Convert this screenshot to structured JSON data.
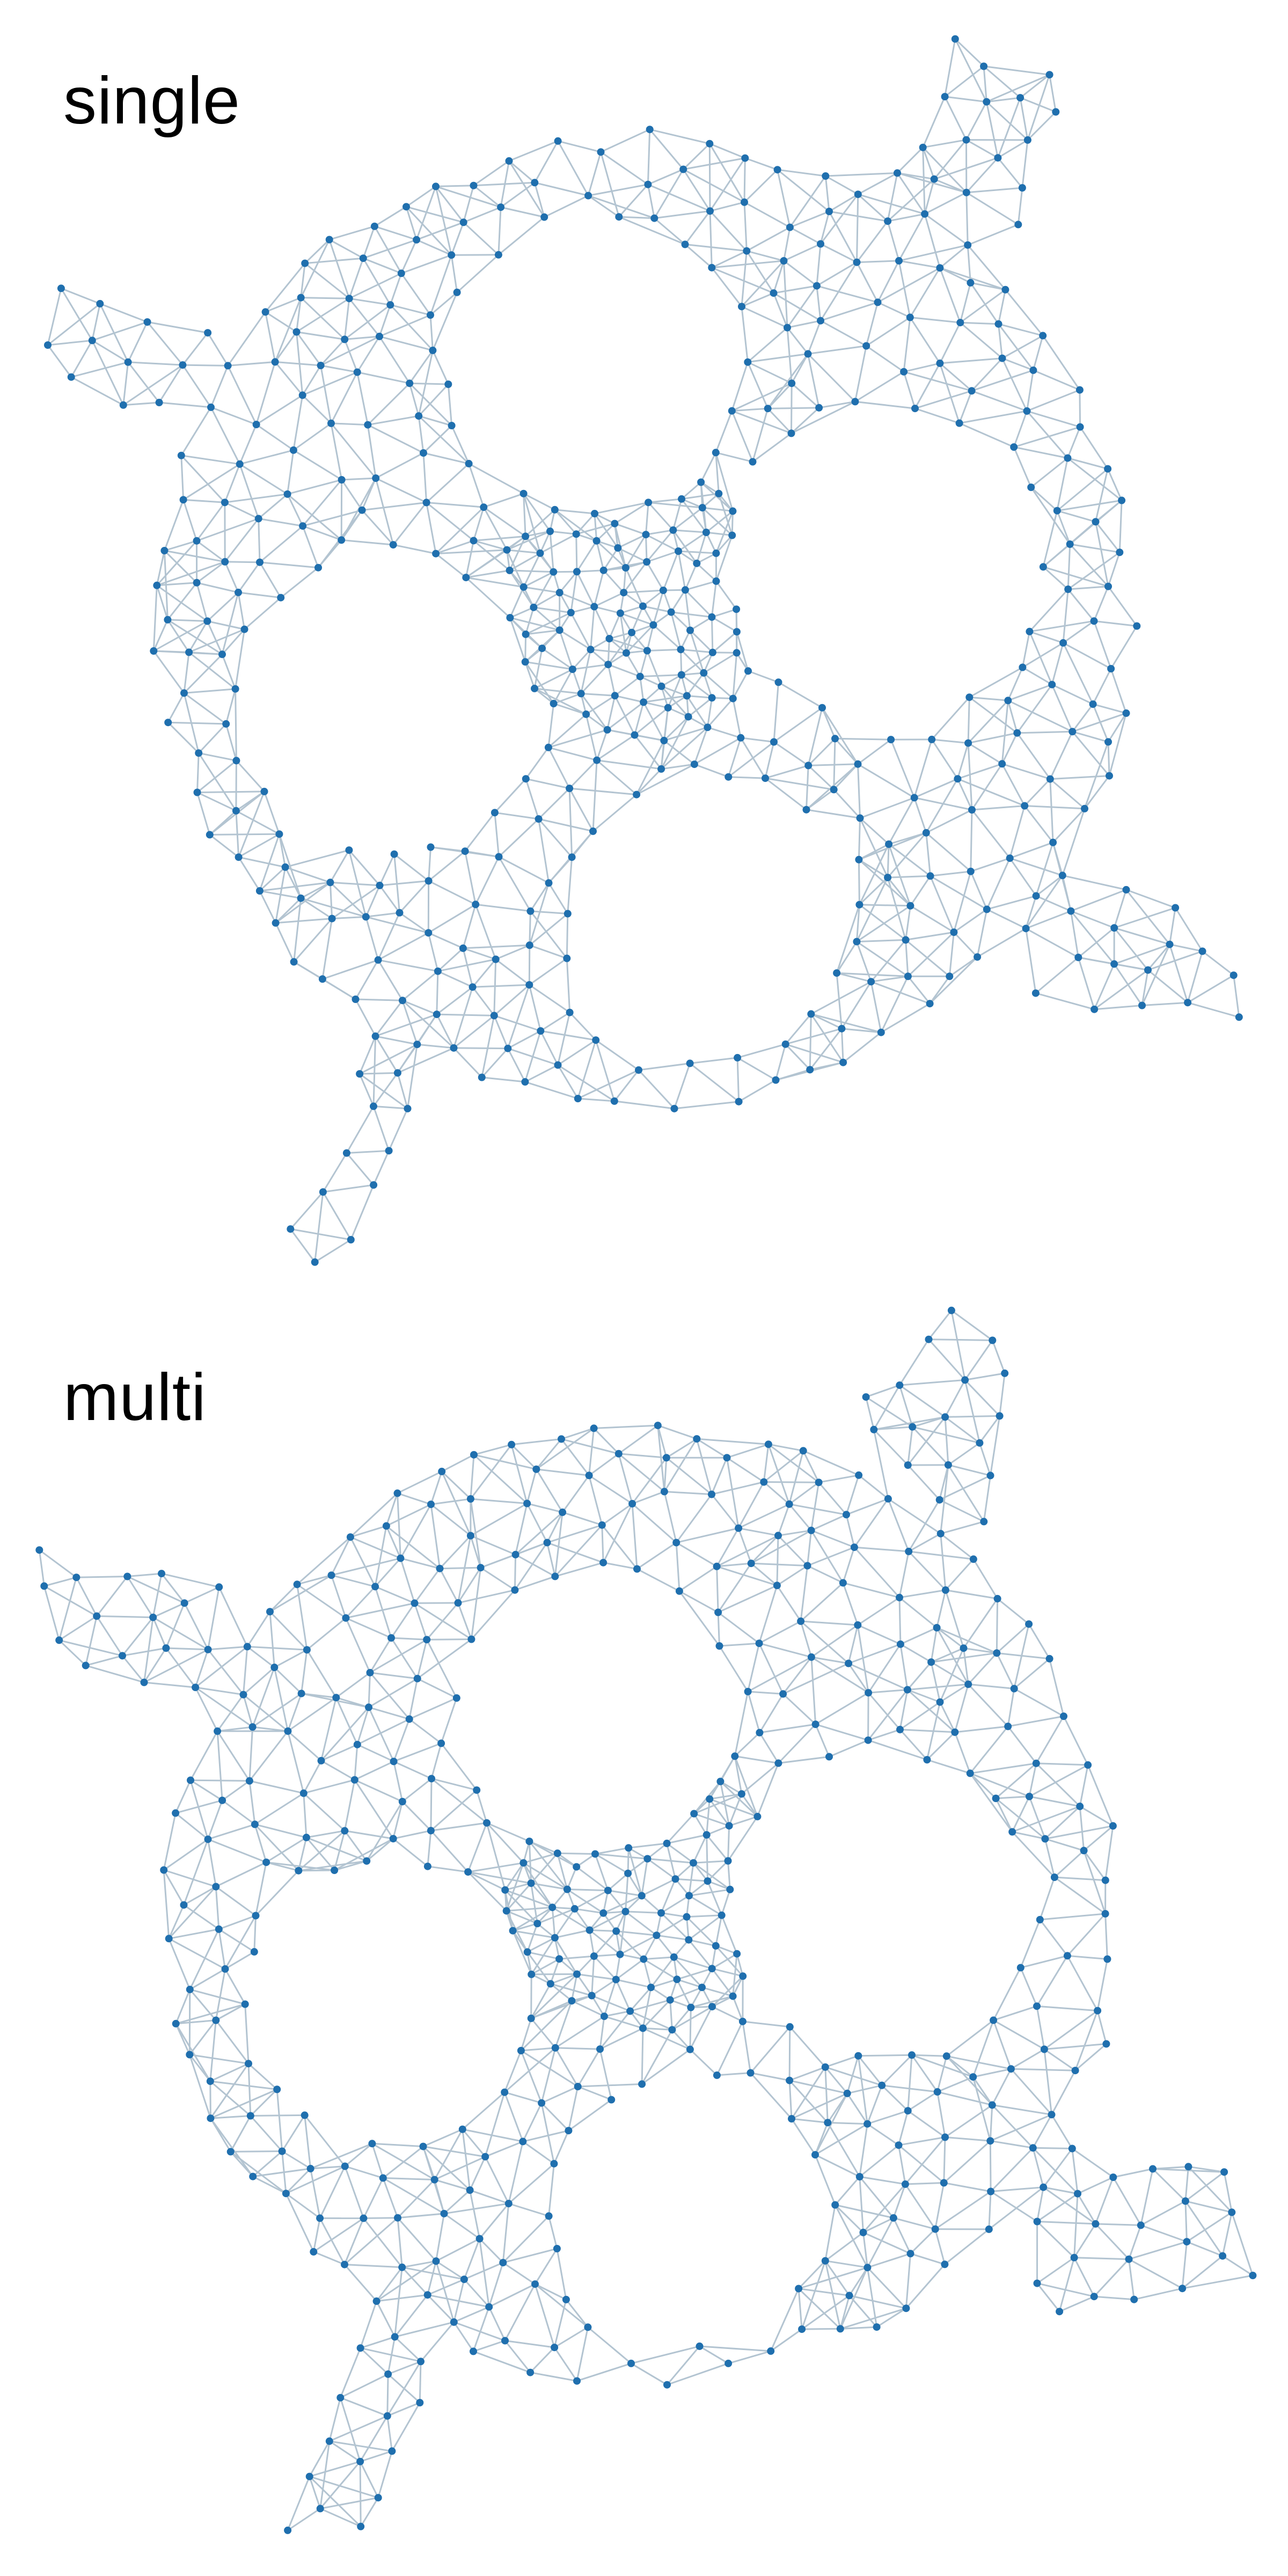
{
  "figure": {
    "panels": [
      {
        "id": "single",
        "title": "single"
      },
      {
        "id": "multi",
        "title": "multi"
      }
    ]
  },
  "colors": {
    "node": "#1f6fae",
    "edge": "#b3c4d1",
    "background": "#ffffff",
    "title": "#000000"
  },
  "graph_model": {
    "description_kind": "triangulated mesh: annulus with four circular holes and four protruding arms",
    "seed_single": 11,
    "seed_multi": 29,
    "node_count_target": 900
  }
}
